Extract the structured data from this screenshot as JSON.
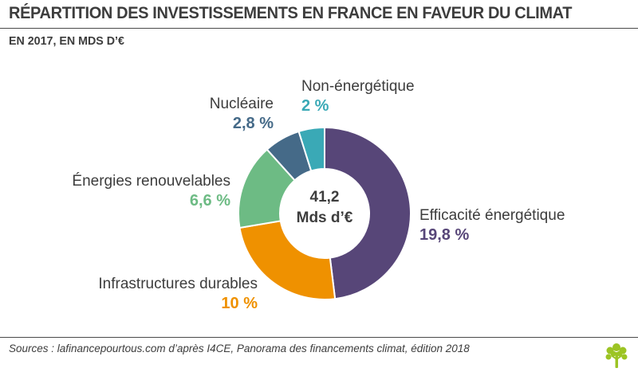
{
  "header": {
    "title": "RÉPARTITION DES INVESTISSEMENTS EN FRANCE EN FAVEUR DU CLIMAT",
    "subtitle": "EN 2017, EN MDS D’€"
  },
  "chart_data": {
    "type": "pie",
    "variant": "donut",
    "title": "RÉPARTITION DES INVESTISSEMENTS EN FRANCE EN FAVEUR DU CLIMAT",
    "subtitle": "EN 2017, EN MDS D’€",
    "center_label": [
      "41,2",
      "Mds d’€"
    ],
    "slices": [
      {
        "label": "Efficacité énergétique",
        "value": 19.8,
        "display": "19,8 %",
        "color": "#574678"
      },
      {
        "label": "Infrastructures durables",
        "value": 10,
        "display": "10 %",
        "color": "#ef9100"
      },
      {
        "label": "Énergies renouvelables",
        "value": 6.6,
        "display": "6,6 %",
        "color": "#6dbb84"
      },
      {
        "label": "Nucléaire",
        "value": 2.8,
        "display": "2,8 %",
        "color": "#456a88"
      },
      {
        "label": "Non-énergétique",
        "value": 2,
        "display": "2 %",
        "color": "#3aa9b6"
      }
    ]
  },
  "footer": {
    "source": "Sources : lafinancepourtous.com d’après I4CE, Panorama des financements climat, édition 2018"
  },
  "colors": {
    "text": "#3d3d3d",
    "logo": "#9cc424"
  }
}
